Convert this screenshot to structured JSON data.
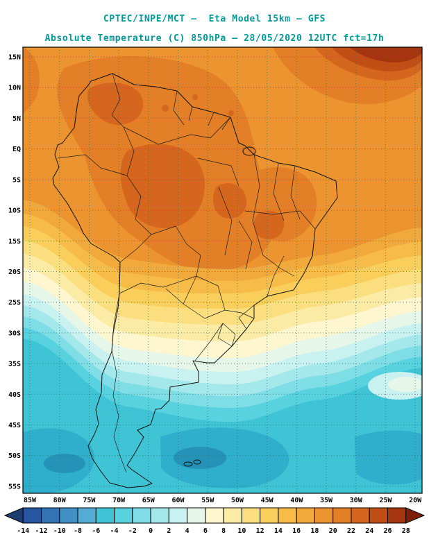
{
  "header": {
    "line1": "CPTEC/INPE/MCT –  Eta Model 15km – GFS",
    "line2": "Absolute Temperature (C) 850hPa – 28/05/2020 12UTC fct=17h",
    "title_color": "#009898"
  },
  "map": {
    "lat_labels": [
      "15N",
      "10N",
      "5N",
      "EQ",
      "5S",
      "10S",
      "15S",
      "20S",
      "25S",
      "30S",
      "35S",
      "40S",
      "45S",
      "50S",
      "55S"
    ],
    "lon_labels": [
      "85W",
      "80W",
      "75W",
      "70W",
      "65W",
      "60W",
      "55W",
      "50W",
      "45W",
      "40W",
      "35W",
      "30W",
      "25W",
      "20W"
    ]
  },
  "colorbar": {
    "tick_labels": [
      "-14",
      "-12",
      "-10",
      "-8",
      "-6",
      "-4",
      "-2",
      "0",
      "2",
      "4",
      "6",
      "8",
      "10",
      "12",
      "14",
      "16",
      "18",
      "20",
      "22",
      "24",
      "26",
      "28"
    ],
    "colors": [
      "#1D3D6E",
      "#27569E",
      "#3173B5",
      "#4191C6",
      "#55ACD3",
      "#3FC4D6",
      "#58D2DE",
      "#7FDEE5",
      "#A5E8EB",
      "#C8F1F0",
      "#E6F6E9",
      "#FDF6CE",
      "#FCEBA4",
      "#FBDE7E",
      "#F9CE5B",
      "#F6BC47",
      "#F2A93B",
      "#EC9530",
      "#E37F26",
      "#D5661D",
      "#C14E15",
      "#A5350E",
      "#7E2008"
    ]
  },
  "chart_data": {
    "type": "heatmap",
    "title": "Absolute Temperature (C) 850hPa",
    "source": "CPTEC/INPE/MCT",
    "model": "Eta Model 15km – GFS",
    "valid": "28/05/2020 12UTC fct=17h",
    "units": "C",
    "scale": {
      "min": -14,
      "max": 28,
      "step": 2
    },
    "lat_range": [
      "15N",
      "55S"
    ],
    "lon_range": [
      "85W",
      "20W"
    ]
  }
}
